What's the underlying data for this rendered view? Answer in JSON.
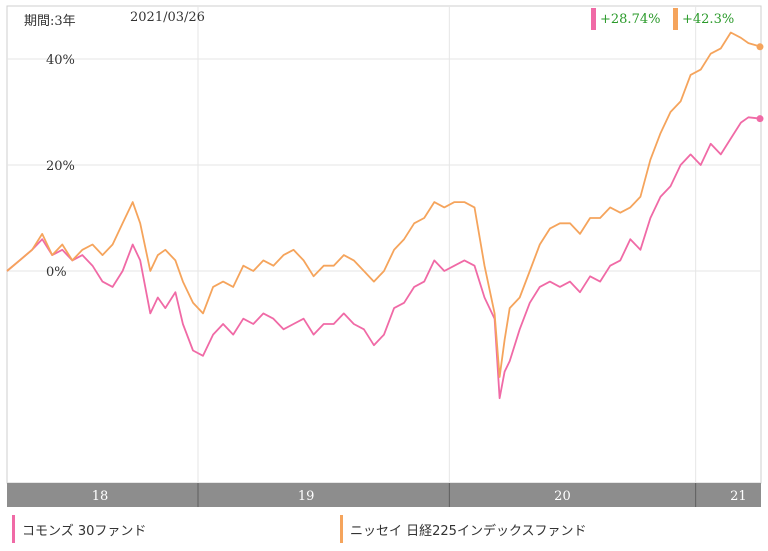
{
  "header": {
    "period": "期間:3年",
    "date": "2021/03/26"
  },
  "returns": [
    {
      "value": "+28.74%",
      "color": "#f06aa6"
    },
    {
      "value": "+42.3%",
      "color": "#f5a45c"
    }
  ],
  "chart_data": {
    "type": "line",
    "ylim": [
      -40,
      50
    ],
    "yticks": [
      "40%",
      "20%",
      "0%"
    ],
    "ytick_values": [
      40,
      20,
      0
    ],
    "xlim": [
      0,
      3
    ],
    "x_tick_labels": [
      "18",
      "19",
      "20",
      "21"
    ],
    "x_ticks": [
      0.37,
      1.19,
      2.21,
      2.91
    ],
    "x_boundaries": [
      0.76,
      1.76,
      2.74
    ],
    "grid": true,
    "series": [
      {
        "name": "コモンズ 30ファンド",
        "color": "#f06aa6",
        "points": [
          [
            0,
            0
          ],
          [
            0.05,
            2
          ],
          [
            0.1,
            4
          ],
          [
            0.14,
            6
          ],
          [
            0.18,
            3
          ],
          [
            0.22,
            4
          ],
          [
            0.26,
            2
          ],
          [
            0.3,
            3
          ],
          [
            0.34,
            1
          ],
          [
            0.38,
            -2
          ],
          [
            0.42,
            -3
          ],
          [
            0.46,
            0
          ],
          [
            0.5,
            5
          ],
          [
            0.53,
            2
          ],
          [
            0.57,
            -8
          ],
          [
            0.6,
            -5
          ],
          [
            0.63,
            -7
          ],
          [
            0.67,
            -4
          ],
          [
            0.7,
            -10
          ],
          [
            0.74,
            -15
          ],
          [
            0.78,
            -16
          ],
          [
            0.82,
            -12
          ],
          [
            0.86,
            -10
          ],
          [
            0.9,
            -12
          ],
          [
            0.94,
            -9
          ],
          [
            0.98,
            -10
          ],
          [
            1.02,
            -8
          ],
          [
            1.06,
            -9
          ],
          [
            1.1,
            -11
          ],
          [
            1.14,
            -10
          ],
          [
            1.18,
            -9
          ],
          [
            1.22,
            -12
          ],
          [
            1.26,
            -10
          ],
          [
            1.3,
            -10
          ],
          [
            1.34,
            -8
          ],
          [
            1.38,
            -10
          ],
          [
            1.42,
            -11
          ],
          [
            1.46,
            -14
          ],
          [
            1.5,
            -12
          ],
          [
            1.54,
            -7
          ],
          [
            1.58,
            -6
          ],
          [
            1.62,
            -3
          ],
          [
            1.66,
            -2
          ],
          [
            1.7,
            2
          ],
          [
            1.74,
            0
          ],
          [
            1.78,
            1
          ],
          [
            1.82,
            2
          ],
          [
            1.86,
            1
          ],
          [
            1.9,
            -5
          ],
          [
            1.94,
            -9
          ],
          [
            1.96,
            -24
          ],
          [
            1.98,
            -19
          ],
          [
            2.0,
            -17
          ],
          [
            2.04,
            -11
          ],
          [
            2.08,
            -6
          ],
          [
            2.12,
            -3
          ],
          [
            2.16,
            -2
          ],
          [
            2.2,
            -3
          ],
          [
            2.24,
            -2
          ],
          [
            2.28,
            -4
          ],
          [
            2.32,
            -1
          ],
          [
            2.36,
            -2
          ],
          [
            2.4,
            1
          ],
          [
            2.44,
            2
          ],
          [
            2.48,
            6
          ],
          [
            2.52,
            4
          ],
          [
            2.56,
            10
          ],
          [
            2.6,
            14
          ],
          [
            2.64,
            16
          ],
          [
            2.68,
            20
          ],
          [
            2.72,
            22
          ],
          [
            2.76,
            20
          ],
          [
            2.8,
            24
          ],
          [
            2.84,
            22
          ],
          [
            2.88,
            25
          ],
          [
            2.92,
            28
          ],
          [
            2.95,
            29
          ],
          [
            3.0,
            28.74
          ]
        ]
      },
      {
        "name": "ニッセイ 日経225インデックスファンド",
        "color": "#f5a45c",
        "points": [
          [
            0,
            0
          ],
          [
            0.05,
            2
          ],
          [
            0.1,
            4
          ],
          [
            0.14,
            7
          ],
          [
            0.18,
            3
          ],
          [
            0.22,
            5
          ],
          [
            0.26,
            2
          ],
          [
            0.3,
            4
          ],
          [
            0.34,
            5
          ],
          [
            0.38,
            3
          ],
          [
            0.42,
            5
          ],
          [
            0.46,
            9
          ],
          [
            0.5,
            13
          ],
          [
            0.53,
            9
          ],
          [
            0.57,
            0
          ],
          [
            0.6,
            3
          ],
          [
            0.63,
            4
          ],
          [
            0.67,
            2
          ],
          [
            0.7,
            -2
          ],
          [
            0.74,
            -6
          ],
          [
            0.78,
            -8
          ],
          [
            0.82,
            -3
          ],
          [
            0.86,
            -2
          ],
          [
            0.9,
            -3
          ],
          [
            0.94,
            1
          ],
          [
            0.98,
            0
          ],
          [
            1.02,
            2
          ],
          [
            1.06,
            1
          ],
          [
            1.1,
            3
          ],
          [
            1.14,
            4
          ],
          [
            1.18,
            2
          ],
          [
            1.22,
            -1
          ],
          [
            1.26,
            1
          ],
          [
            1.3,
            1
          ],
          [
            1.34,
            3
          ],
          [
            1.38,
            2
          ],
          [
            1.42,
            0
          ],
          [
            1.46,
            -2
          ],
          [
            1.5,
            0
          ],
          [
            1.54,
            4
          ],
          [
            1.58,
            6
          ],
          [
            1.62,
            9
          ],
          [
            1.66,
            10
          ],
          [
            1.7,
            13
          ],
          [
            1.74,
            12
          ],
          [
            1.78,
            13
          ],
          [
            1.82,
            13
          ],
          [
            1.86,
            12
          ],
          [
            1.9,
            1
          ],
          [
            1.94,
            -8
          ],
          [
            1.96,
            -20
          ],
          [
            1.98,
            -13
          ],
          [
            2.0,
            -7
          ],
          [
            2.04,
            -5
          ],
          [
            2.08,
            0
          ],
          [
            2.12,
            5
          ],
          [
            2.16,
            8
          ],
          [
            2.2,
            9
          ],
          [
            2.24,
            9
          ],
          [
            2.28,
            7
          ],
          [
            2.32,
            10
          ],
          [
            2.36,
            10
          ],
          [
            2.4,
            12
          ],
          [
            2.44,
            11
          ],
          [
            2.48,
            12
          ],
          [
            2.52,
            14
          ],
          [
            2.56,
            21
          ],
          [
            2.6,
            26
          ],
          [
            2.64,
            30
          ],
          [
            2.68,
            32
          ],
          [
            2.72,
            37
          ],
          [
            2.76,
            38
          ],
          [
            2.8,
            41
          ],
          [
            2.84,
            42
          ],
          [
            2.88,
            45
          ],
          [
            2.92,
            44
          ],
          [
            2.95,
            43
          ],
          [
            3.0,
            42.3
          ]
        ]
      }
    ]
  }
}
